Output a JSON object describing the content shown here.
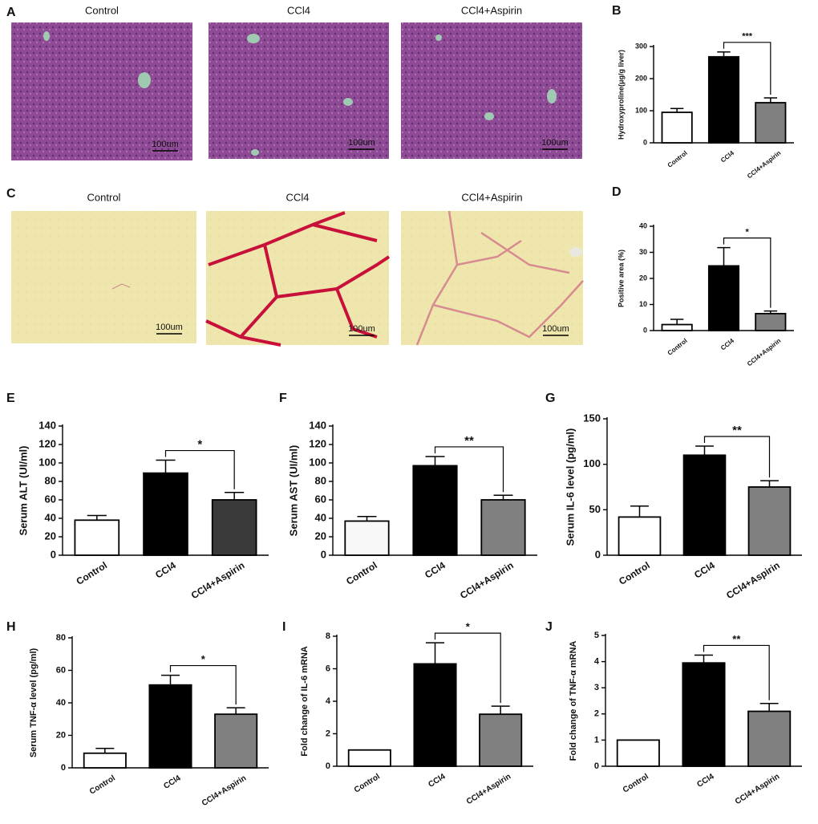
{
  "images": [
    {
      "panel": "A",
      "titles": [
        "Control",
        "CCl4",
        "CCl4+Aspirin"
      ],
      "scale_bar": "100um"
    },
    {
      "panel": "C",
      "titles": [
        "Control",
        "CCl4",
        "CCl4+Aspirin"
      ],
      "scale_bar": "100um"
    }
  ],
  "chart_data": [
    {
      "type": "bar",
      "panel": "B",
      "ylabel": "Hydroxyproline(μg/g liver)",
      "categories": [
        "Control",
        "CCl4",
        "CCl4+Aspirin"
      ],
      "values": [
        95,
        268,
        125
      ],
      "errors": [
        12,
        15,
        15
      ],
      "colors": [
        "#ffffff",
        "#000000",
        "#808080"
      ],
      "ylim": [
        0,
        300
      ],
      "yticks": [
        0,
        100,
        200,
        300
      ],
      "significance": "***"
    },
    {
      "type": "bar",
      "panel": "D",
      "ylabel": "Positive area (%)",
      "categories": [
        "Control",
        "CCl4",
        "CCl4+Aspirin"
      ],
      "values": [
        2.3,
        24.8,
        6.5
      ],
      "errors": [
        2,
        7,
        1
      ],
      "colors": [
        "#ffffff",
        "#000000",
        "#808080"
      ],
      "ylim": [
        0,
        40
      ],
      "yticks": [
        0,
        10,
        20,
        30,
        40
      ],
      "significance": "*"
    },
    {
      "type": "bar",
      "panel": "E",
      "ylabel": "Serum ALT (UI/ml)",
      "categories": [
        "Control",
        "CCl4",
        "CCl4+Aspirin"
      ],
      "values": [
        38,
        89,
        60
      ],
      "errors": [
        5,
        14,
        8
      ],
      "colors": [
        "#ffffff",
        "#000000",
        "#3a3a3a"
      ],
      "ylim": [
        0,
        140
      ],
      "yticks": [
        0,
        20,
        40,
        60,
        80,
        100,
        120,
        140
      ],
      "significance": "*"
    },
    {
      "type": "bar",
      "panel": "F",
      "ylabel": "Serum AST (UI/ml)",
      "categories": [
        "Control",
        "CCl4",
        "CCl4+Aspirin"
      ],
      "values": [
        37,
        97,
        60
      ],
      "errors": [
        5,
        10,
        5
      ],
      "colors": [
        "#f8f8f8",
        "#000000",
        "#808080"
      ],
      "ylim": [
        0,
        140
      ],
      "yticks": [
        0,
        20,
        40,
        60,
        80,
        100,
        120,
        140
      ],
      "significance": "**"
    },
    {
      "type": "bar",
      "panel": "G",
      "ylabel": "Serum IL-6 level (pg/ml)",
      "categories": [
        "Control",
        "CCl4",
        "CCl4+Aspirin"
      ],
      "values": [
        42,
        110,
        75
      ],
      "errors": [
        12,
        10,
        7
      ],
      "colors": [
        "#ffffff",
        "#000000",
        "#808080"
      ],
      "ylim": [
        0,
        150
      ],
      "yticks": [
        0,
        50,
        100,
        150
      ],
      "significance": "**"
    },
    {
      "type": "bar",
      "panel": "H",
      "ylabel": "Serum TNF-α level (pg/ml)",
      "categories": [
        "Control",
        "CCl4",
        "CCl4+Aspirin"
      ],
      "values": [
        9,
        51,
        33
      ],
      "errors": [
        3,
        6,
        4
      ],
      "colors": [
        "#ffffff",
        "#000000",
        "#808080"
      ],
      "ylim": [
        0,
        80
      ],
      "yticks": [
        0,
        20,
        40,
        60,
        80
      ],
      "significance": "*"
    },
    {
      "type": "bar",
      "panel": "I",
      "ylabel": "Fold change of IL-6 mRNA",
      "categories": [
        "Control",
        "CCl4",
        "CCl4+Aspirin"
      ],
      "values": [
        1,
        6.3,
        3.2
      ],
      "errors": [
        0,
        1.3,
        0.5
      ],
      "colors": [
        "#ffffff",
        "#000000",
        "#808080"
      ],
      "ylim": [
        0,
        8
      ],
      "yticks": [
        0,
        2,
        4,
        6,
        8
      ],
      "significance": "*"
    },
    {
      "type": "bar",
      "panel": "J",
      "ylabel": "Fold change of TNF-α mRNA",
      "categories": [
        "Control",
        "CCl4",
        "CCl4+Aspirin"
      ],
      "values": [
        1,
        3.95,
        2.1
      ],
      "errors": [
        0,
        0.3,
        0.3
      ],
      "colors": [
        "#ffffff",
        "#000000",
        "#808080"
      ],
      "ylim": [
        0,
        5
      ],
      "yticks": [
        0,
        1,
        2,
        3,
        4,
        5
      ],
      "significance": "**"
    }
  ]
}
